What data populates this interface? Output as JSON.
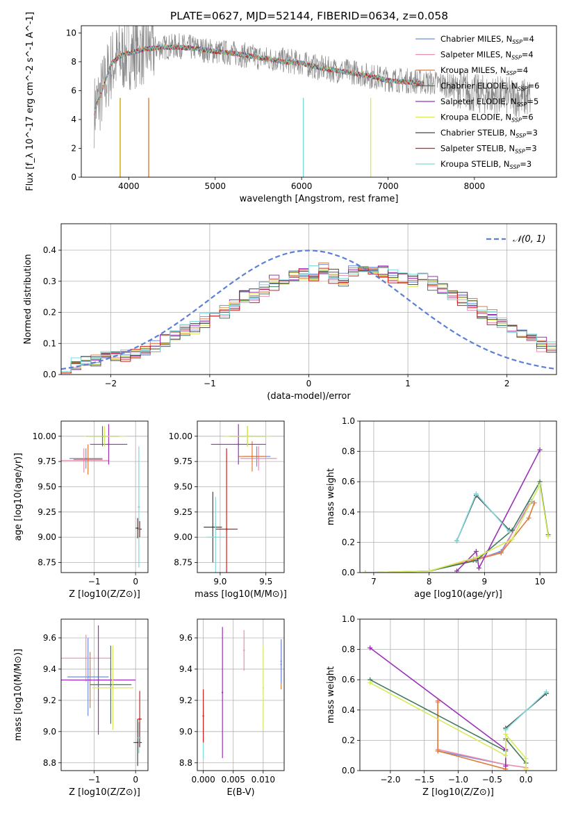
{
  "figure": {
    "title": "PLATE=0627, MJD=52144, FIBERID=0634, z=0.058"
  },
  "models": [
    {
      "name": "Chabrier MILES",
      "nssp": "4",
      "color": "#6f8fe0"
    },
    {
      "name": "Salpeter MILES",
      "nssp": "4",
      "color": "#e88fb0"
    },
    {
      "name": "Kroupa MILES",
      "nssp": "4",
      "color": "#e07b39"
    },
    {
      "name": "Chabrier ELODIE",
      "nssp": "6",
      "color": "#3f7a5a"
    },
    {
      "name": "Salpeter ELODIE",
      "nssp": "5",
      "color": "#9b30b8"
    },
    {
      "name": "Kroupa ELODIE",
      "nssp": "6",
      "color": "#d8ea5a"
    },
    {
      "name": "Chabrier STELIB",
      "nssp": "3",
      "color": "#444444"
    },
    {
      "name": "Salpeter STELIB",
      "nssp": "3",
      "color": "#cc1f1f"
    },
    {
      "name": "Kroupa STELIB",
      "nssp": "3",
      "color": "#7fd8d8"
    }
  ],
  "chart_data": [
    {
      "id": "spectrum",
      "type": "line",
      "title": "PLATE=0627, MJD=52144, FIBERID=0634, z=0.058",
      "xlabel": "wavelength [Angstrom, rest frame]",
      "ylabel": "Flux [f_λ 10^-17 erg cm^-2 s^-1 A^-1]",
      "xlim": [
        3450,
        8950
      ],
      "ylim": [
        0,
        10.5
      ],
      "xticks": [
        4000,
        5000,
        6000,
        7000,
        8000
      ],
      "yticks": [
        0,
        2,
        4,
        6,
        8,
        10
      ],
      "data": {
        "x": [
          3600,
          3700,
          3800,
          3900,
          4000,
          4200,
          4400,
          4600,
          4800,
          5000,
          5200,
          5400,
          5600,
          5800,
          6000,
          6200,
          6400,
          6600,
          6800,
          7000,
          7200,
          7400,
          7600,
          7800,
          8000,
          8200,
          8400,
          8600
        ],
        "y": [
          4.6,
          6.0,
          7.8,
          8.3,
          8.6,
          8.9,
          9.0,
          9.1,
          8.9,
          8.7,
          8.6,
          8.4,
          8.2,
          8.1,
          7.9,
          7.6,
          7.4,
          7.3,
          7.0,
          6.8,
          6.7,
          6.6,
          6.5,
          6.2,
          5.8,
          5.7,
          5.6,
          5.5
        ]
      },
      "model": {
        "x": [
          3600,
          3700,
          3800,
          3900,
          4000,
          4200,
          4400,
          4600,
          4800,
          5000,
          5200,
          5400,
          5600,
          5800,
          6000,
          6200,
          6400,
          6600,
          6800,
          7000,
          7200,
          7400
        ],
        "y": [
          4.5,
          6.2,
          7.9,
          8.4,
          8.6,
          8.9,
          9.0,
          9.0,
          8.9,
          8.7,
          8.6,
          8.4,
          8.2,
          8.0,
          7.9,
          7.6,
          7.4,
          7.2,
          7.0,
          6.7,
          6.6,
          6.5
        ]
      }
    },
    {
      "id": "residual_hist",
      "type": "line",
      "xlabel": "(data-model)/error",
      "ylabel": "Normed distribution",
      "xlim": [
        -2.5,
        2.5
      ],
      "ylim": [
        0,
        0.485
      ],
      "xticks": [
        -2,
        -1,
        0,
        1,
        2
      ],
      "yticks": [
        0.0,
        0.1,
        0.2,
        0.3,
        0.4
      ],
      "legend": "$\\mathcal{N}(0,1)$",
      "bins_start": -2.5,
      "bin_width": 0.1,
      "hist_a": [
        0.03,
        0.035,
        0.045,
        0.05,
        0.055,
        0.06,
        0.065,
        0.07,
        0.08,
        0.09,
        0.11,
        0.13,
        0.15,
        0.16,
        0.18,
        0.2,
        0.21,
        0.23,
        0.25,
        0.26,
        0.28,
        0.3,
        0.31,
        0.32,
        0.33,
        0.33,
        0.34,
        0.32,
        0.31,
        0.34,
        0.35,
        0.34,
        0.33,
        0.32,
        0.31,
        0.31,
        0.32,
        0.3,
        0.28,
        0.26,
        0.25,
        0.23,
        0.2,
        0.19,
        0.17,
        0.15,
        0.14,
        0.12,
        0.1,
        0.09
      ],
      "hist_b": [
        0.025,
        0.03,
        0.04,
        0.045,
        0.05,
        0.055,
        0.06,
        0.068,
        0.075,
        0.085,
        0.1,
        0.12,
        0.14,
        0.15,
        0.17,
        0.19,
        0.2,
        0.22,
        0.24,
        0.25,
        0.27,
        0.29,
        0.3,
        0.31,
        0.32,
        0.32,
        0.33,
        0.31,
        0.3,
        0.33,
        0.34,
        0.33,
        0.32,
        0.31,
        0.3,
        0.3,
        0.31,
        0.29,
        0.27,
        0.25,
        0.24,
        0.22,
        0.19,
        0.18,
        0.16,
        0.14,
        0.13,
        0.11,
        0.09,
        0.08
      ]
    },
    {
      "id": "age_vs_Z",
      "type": "scatter",
      "xlabel": "Z [log10(Z/Z⊙)]",
      "ylabel": "age [log10(age/yr)]",
      "xlim": [
        -1.8,
        0.3
      ],
      "ylim": [
        8.65,
        10.15
      ],
      "xticks": [
        -1,
        0
      ],
      "yticks": [
        8.75,
        9.0,
        9.25,
        9.5,
        9.75,
        10.0
      ],
      "points": [
        {
          "x": -1.2,
          "y": 9.78,
          "xerr": 0.4,
          "yerr": 0.1,
          "m": 0
        },
        {
          "x": -1.25,
          "y": 9.76,
          "xerr": 0.6,
          "yerr": 0.12,
          "m": 1
        },
        {
          "x": -1.15,
          "y": 9.77,
          "xerr": 0.35,
          "yerr": 0.15,
          "m": 2
        },
        {
          "x": -0.8,
          "y": 10.0,
          "xerr": 0.4,
          "yerr": 0.1,
          "m": 3
        },
        {
          "x": -0.65,
          "y": 9.92,
          "xerr": 0.45,
          "yerr": 0.2,
          "m": 4
        },
        {
          "x": -0.75,
          "y": 10.0,
          "xerr": 0.5,
          "yerr": 0.1,
          "m": 5
        },
        {
          "x": 0.05,
          "y": 9.09,
          "xerr": 0.05,
          "yerr": 0.1,
          "m": 6
        },
        {
          "x": 0.1,
          "y": 9.08,
          "xerr": 0.05,
          "yerr": 0.08,
          "m": 7
        },
        {
          "x": 0.08,
          "y": 9.3,
          "xerr": 0.03,
          "yerr": 0.6,
          "m": 8
        }
      ]
    },
    {
      "id": "age_vs_mass",
      "type": "scatter",
      "xlabel": "mass [log10(M/M⊙)]",
      "ylabel": "",
      "xlim": [
        8.75,
        9.7
      ],
      "ylim": [
        8.65,
        10.15
      ],
      "xticks": [
        9.0,
        9.5
      ],
      "yticks": [
        8.75,
        9.0,
        9.25,
        9.5,
        9.75,
        10.0
      ],
      "points": [
        {
          "x": 9.4,
          "y": 9.8,
          "xerr": 0.15,
          "yerr": 0.1,
          "m": 0
        },
        {
          "x": 9.42,
          "y": 9.78,
          "xerr": 0.2,
          "yerr": 0.12,
          "m": 1
        },
        {
          "x": 9.35,
          "y": 9.8,
          "xerr": 0.15,
          "yerr": 0.15,
          "m": 2
        },
        {
          "x": 9.3,
          "y": 10.0,
          "xerr": 0.2,
          "yerr": 0.1,
          "m": 3
        },
        {
          "x": 9.2,
          "y": 9.92,
          "xerr": 0.3,
          "yerr": 0.2,
          "m": 4
        },
        {
          "x": 9.3,
          "y": 10.0,
          "xerr": 0.25,
          "yerr": 0.1,
          "m": 5
        },
        {
          "x": 8.92,
          "y": 9.1,
          "xerr": 0.1,
          "yerr": 0.35,
          "m": 6
        },
        {
          "x": 9.07,
          "y": 9.08,
          "xerr": 0.12,
          "yerr": 0.8,
          "m": 7
        },
        {
          "x": 8.95,
          "y": 9.0,
          "xerr": 0.1,
          "yerr": 0.4,
          "m": 8
        }
      ]
    },
    {
      "id": "mw_vs_age",
      "type": "line",
      "xlabel": "age [log10(age/yr)]",
      "ylabel": "mass weight",
      "xlim": [
        6.75,
        10.3
      ],
      "ylim": [
        0,
        1.0
      ],
      "xticks": [
        7,
        8,
        9,
        10
      ],
      "yticks": [
        0.0,
        0.2,
        0.4,
        0.6,
        0.8,
        1.0
      ],
      "series": [
        {
          "m": 0,
          "x": [
            6.85,
            8.0,
            8.8,
            9.3,
            9.85
          ],
          "y": [
            0.0,
            0.01,
            0.08,
            0.14,
            0.47
          ]
        },
        {
          "m": 1,
          "x": [
            6.85,
            8.0,
            8.8,
            9.3,
            9.8
          ],
          "y": [
            0.0,
            0.01,
            0.09,
            0.13,
            0.45
          ]
        },
        {
          "m": 2,
          "x": [
            8.0,
            8.8,
            9.3,
            9.8,
            9.9
          ],
          "y": [
            0.01,
            0.08,
            0.13,
            0.36,
            0.46
          ]
        },
        {
          "m": 3,
          "x": [
            8.0,
            8.85,
            9.5,
            10.0,
            10.15
          ],
          "y": [
            0.01,
            0.08,
            0.28,
            0.6,
            0.25
          ]
        },
        {
          "m": 4,
          "x": [
            8.5,
            8.85,
            8.9,
            10.0
          ],
          "y": [
            0.01,
            0.14,
            0.03,
            0.81
          ]
        },
        {
          "m": 5,
          "x": [
            6.85,
            8.0,
            8.85,
            9.5,
            10.0,
            10.15
          ],
          "y": [
            0.0,
            0.01,
            0.1,
            0.22,
            0.58,
            0.24
          ]
        },
        {
          "m": 6,
          "x": [
            8.5,
            8.85,
            9.45
          ],
          "y": [
            0.21,
            0.51,
            0.28
          ]
        },
        {
          "m": 8,
          "x": [
            8.5,
            8.85,
            9.45
          ],
          "y": [
            0.21,
            0.52,
            0.27
          ]
        }
      ]
    },
    {
      "id": "mass_vs_Z",
      "type": "scatter",
      "xlabel": "Z [log10(Z/Z⊙)]",
      "ylabel": "mass [log10(M/M⊙)]",
      "xlim": [
        -1.8,
        0.3
      ],
      "ylim": [
        8.75,
        9.72
      ],
      "xticks": [
        -1,
        0
      ],
      "yticks": [
        8.8,
        9.0,
        9.2,
        9.4,
        9.6
      ],
      "points": [
        {
          "x": -1.15,
          "y": 9.35,
          "xerr": 0.5,
          "yerr": 0.25,
          "m": 0
        },
        {
          "x": -1.2,
          "y": 9.47,
          "xerr": 0.6,
          "yerr": 0.15,
          "m": 1
        },
        {
          "x": -1.1,
          "y": 9.33,
          "xerr": 0.5,
          "yerr": 0.18,
          "m": 2
        },
        {
          "x": -0.6,
          "y": 9.3,
          "xerr": 0.5,
          "yerr": 0.25,
          "m": 3
        },
        {
          "x": -0.9,
          "y": 9.33,
          "xerr": 0.9,
          "yerr": 0.35,
          "m": 4
        },
        {
          "x": -0.55,
          "y": 9.28,
          "xerr": 0.5,
          "yerr": 0.27,
          "m": 5
        },
        {
          "x": 0.05,
          "y": 8.93,
          "xerr": 0.1,
          "yerr": 0.15,
          "m": 6
        },
        {
          "x": 0.1,
          "y": 9.08,
          "xerr": 0.05,
          "yerr": 0.18,
          "m": 7
        },
        {
          "x": 0.08,
          "y": 8.96,
          "xerr": 0.05,
          "yerr": 0.1,
          "m": 8
        }
      ]
    },
    {
      "id": "mass_vs_ebv",
      "type": "scatter",
      "xlabel": "E(B-V)",
      "ylabel": "",
      "xlim": [
        -0.001,
        0.0135
      ],
      "ylim": [
        8.75,
        9.72
      ],
      "xticks": [
        0.0,
        0.005,
        0.01
      ],
      "yticks": [
        8.8,
        9.0,
        9.2,
        9.4,
        9.6
      ],
      "points": [
        {
          "x": 0.013,
          "y": 9.43,
          "yerr": 0.16,
          "m": 2
        },
        {
          "x": 0.0068,
          "y": 9.52,
          "yerr": 0.13,
          "m": 1
        },
        {
          "x": 0.0032,
          "y": 9.25,
          "yerr": 0.42,
          "m": 4
        },
        {
          "x": 0.01,
          "y": 9.28,
          "yerr": 0.27,
          "m": 5
        },
        {
          "x": 0.0,
          "y": 9.0,
          "yerr": 0.17,
          "m": 8
        },
        {
          "x": 0.0,
          "y": 9.1,
          "yerr": 0.17,
          "m": 7
        },
        {
          "x": 0.013,
          "y": 9.45,
          "yerr": 0.14,
          "m": 0
        }
      ]
    },
    {
      "id": "mw_vs_Z",
      "type": "line",
      "xlabel": "Z [log10(Z/Z⊙)]",
      "ylabel": "mass weight",
      "xlim": [
        -2.45,
        0.45
      ],
      "ylim": [
        0,
        1.0
      ],
      "xticks": [
        -2.0,
        -1.5,
        -1.0,
        -0.5,
        0.0
      ],
      "yticks": [
        0.0,
        0.2,
        0.4,
        0.6,
        0.8,
        1.0
      ],
      "series": [
        {
          "m": 0,
          "x": [
            -1.3,
            -0.3,
            -0.3
          ],
          "y": [
            0.13,
            0.04,
            0.03
          ]
        },
        {
          "m": 1,
          "x": [
            -1.3,
            -1.3,
            -0.3,
            0.0
          ],
          "y": [
            0.45,
            0.14,
            0.04,
            0.02
          ]
        },
        {
          "m": 2,
          "x": [
            -1.3,
            -1.3,
            -0.3,
            -0.3
          ],
          "y": [
            0.46,
            0.13,
            0.01,
            0.2
          ]
        },
        {
          "m": 3,
          "x": [
            -2.3,
            -0.3,
            -0.3,
            0.0
          ],
          "y": [
            0.6,
            0.13,
            0.21,
            0.05
          ]
        },
        {
          "m": 4,
          "x": [
            -2.3,
            -0.3,
            -0.3
          ],
          "y": [
            0.81,
            0.14,
            0.03
          ]
        },
        {
          "m": 5,
          "x": [
            -2.3,
            -0.3,
            -0.3,
            0.0,
            0.0
          ],
          "y": [
            0.58,
            0.1,
            0.24,
            0.08,
            0.01
          ]
        },
        {
          "m": 6,
          "x": [
            -0.3,
            0.3
          ],
          "y": [
            0.28,
            0.51
          ]
        },
        {
          "m": 8,
          "x": [
            -0.3,
            0.3
          ],
          "y": [
            0.27,
            0.52
          ]
        }
      ]
    }
  ]
}
